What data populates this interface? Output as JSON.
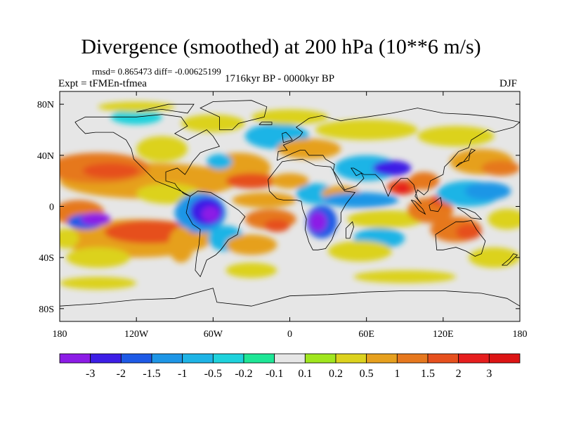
{
  "title": "Divergence (smoothed) at 200 hPa (10**6 m/s)",
  "stats": "rmsd= 0.865473 diff= -0.00625199",
  "experiment": "Expt = tFMEn-tfmea",
  "period": "1716kyr BP - 0000kyr BP",
  "season": "DJF",
  "chart_data": {
    "type": "heatmap",
    "projection": "cylindrical equidistant, longitude -180 to 180, latitude -90 to 90",
    "x_range": [
      -180,
      180
    ],
    "y_range": [
      -90,
      90
    ],
    "x_ticks": [
      {
        "value": -180,
        "label": "180"
      },
      {
        "value": -120,
        "label": "120W"
      },
      {
        "value": -60,
        "label": "60W"
      },
      {
        "value": 0,
        "label": "0"
      },
      {
        "value": 60,
        "label": "60E"
      },
      {
        "value": 120,
        "label": "120E"
      },
      {
        "value": 180,
        "label": "180"
      }
    ],
    "y_ticks": [
      {
        "value": 80,
        "label": "80N"
      },
      {
        "value": 40,
        "label": "40N"
      },
      {
        "value": 0,
        "label": "0"
      },
      {
        "value": -40,
        "label": "40S"
      },
      {
        "value": -80,
        "label": "80S"
      }
    ],
    "colorbar": {
      "labels": [
        "-3",
        "-2",
        "-1.5",
        "-1",
        "-0.5",
        "-0.2",
        "-0.1",
        "0.1",
        "0.2",
        "0.5",
        "1",
        "1.5",
        "2",
        "3"
      ],
      "colors": [
        "#8c1ce6",
        "#3d1ee6",
        "#1e5ae6",
        "#1e96e6",
        "#1eb4e6",
        "#1ed2dc",
        "#1ee696",
        "#e6e6e6",
        "#a0e61e",
        "#dcd21e",
        "#e6a01e",
        "#e6781e",
        "#e6501e",
        "#e61e1e",
        "#dc1414"
      ]
    },
    "field_features": [
      {
        "name": "S Pacific convergence",
        "lon": -152,
        "lat": -10,
        "value": -3
      },
      {
        "name": "Amazon convergence",
        "lon": -65,
        "lat": -4,
        "value": -3
      },
      {
        "name": "S Africa convergence",
        "lon": 25,
        "lat": -12,
        "value": -2.5
      },
      {
        "name": "Indian Ocean convergence",
        "lon": 70,
        "lat": 5,
        "value": -1.5
      },
      {
        "name": "Tibet convergence",
        "lon": 80,
        "lat": 30,
        "value": -2
      },
      {
        "name": "W Pacific convergence",
        "lon": 150,
        "lat": 10,
        "value": -1
      },
      {
        "name": "Maritime continent divergence",
        "lon": 110,
        "lat": -3,
        "value": 2
      },
      {
        "name": "Bay of Bengal divergence",
        "lon": 88,
        "lat": 15,
        "value": 3
      },
      {
        "name": "S Pacific divergence",
        "lon": -110,
        "lat": -20,
        "value": 1.5
      },
      {
        "name": "N Pacific divergence",
        "lon": -150,
        "lat": 30,
        "value": 1.5
      },
      {
        "name": "S Atlantic divergence",
        "lon": -15,
        "lat": -10,
        "value": 1.5
      },
      {
        "name": "Australia divergence",
        "lon": 130,
        "lat": -18,
        "value": 1.5
      },
      {
        "name": "N Atlantic divergence",
        "lon": -40,
        "lat": 30,
        "value": 1
      },
      {
        "name": "Europe divergence",
        "lon": 0,
        "lat": 45,
        "value": 0.8
      }
    ]
  }
}
